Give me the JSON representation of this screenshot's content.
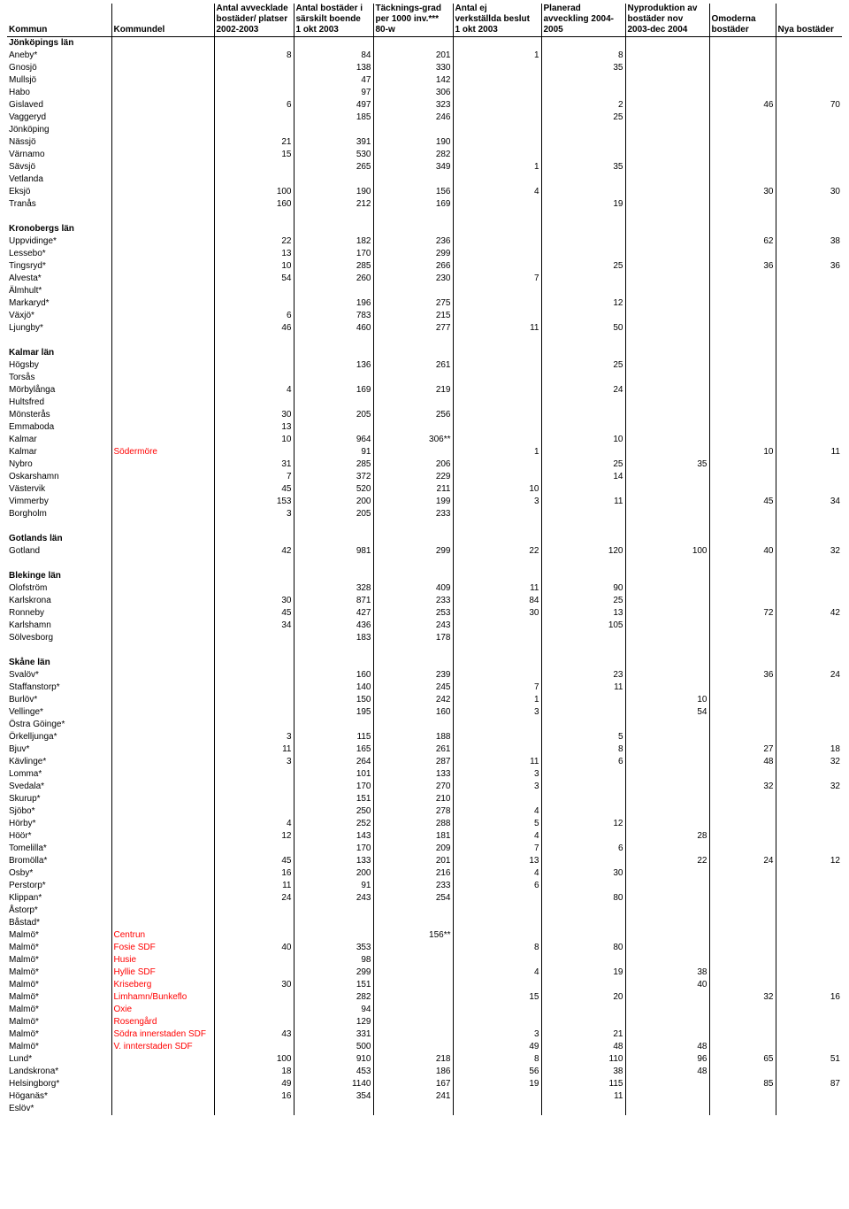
{
  "columns": {
    "kommun": "Kommun",
    "kommundel": "Kommundel",
    "avvecklade": "Antal avvecklade\nbostäder/ platser\n2002-2003",
    "sarskilt": "Antal bostäder i\nsärskilt boende\n1 okt 2003",
    "tacknings": "Täcknings-grad\nper 1000 inv.***\n80-w",
    "ejverk": "Antal ej\nverkställda beslut\n1 okt 2003",
    "planerad": "Planerad\navveckling 2004-\n2005",
    "nyprod": "Nyproduktion av\nbostäder nov\n2003-dec 2004",
    "omoderna": "Omoderna\nbostäder",
    "nya": "Nya bostäder"
  },
  "rows": [
    {
      "k": "Jönköpings län",
      "bold": true
    },
    {
      "k": "Aneby*",
      "av": "8",
      "sa": "84",
      "ta": "201",
      "ej": "1",
      "pl": "8"
    },
    {
      "k": "Gnosjö",
      "sa": "138",
      "ta": "330",
      "pl": "35"
    },
    {
      "k": "Mullsjö",
      "sa": "47",
      "ta": "142"
    },
    {
      "k": "Habo",
      "sa": "97",
      "ta": "306"
    },
    {
      "k": "Gislaved",
      "av": "6",
      "sa": "497",
      "ta": "323",
      "pl": "2",
      "om": "46",
      "ny": "70"
    },
    {
      "k": "Vaggeryd",
      "sa": "185",
      "ta": "246",
      "pl": "25"
    },
    {
      "k": "Jönköping"
    },
    {
      "k": "Nässjö",
      "av": "21",
      "sa": "391",
      "ta": "190"
    },
    {
      "k": "Värnamo",
      "av": "15",
      "sa": "530",
      "ta": "282"
    },
    {
      "k": "Sävsjö",
      "sa": "265",
      "ta": "349",
      "ej": "1",
      "pl": "35"
    },
    {
      "k": "Vetlanda"
    },
    {
      "k": "Eksjö",
      "av": "100",
      "sa": "190",
      "ta": "156",
      "ej": "4",
      "om": "30",
      "ny": "30"
    },
    {
      "k": "Tranås",
      "av": "160",
      "sa": "212",
      "ta": "169",
      "pl": "19"
    },
    {
      "blank": true
    },
    {
      "k": "Kronobergs län",
      "bold": true
    },
    {
      "k": "Uppvidinge*",
      "av": "22",
      "sa": "182",
      "ta": "236",
      "om": "62",
      "ny": "38"
    },
    {
      "k": "Lessebo*",
      "av": "13",
      "sa": "170",
      "ta": "299"
    },
    {
      "k": "Tingsryd*",
      "av": "10",
      "sa": "285",
      "ta": "266",
      "pl": "25",
      "om": "36",
      "ny": "36"
    },
    {
      "k": "Alvesta*",
      "av": "54",
      "sa": "260",
      "ta": "230",
      "ej": "7"
    },
    {
      "k": "Älmhult*"
    },
    {
      "k": "Markaryd*",
      "sa": "196",
      "ta": "275",
      "pl": "12"
    },
    {
      "k": "Växjö*",
      "av": "6",
      "sa": "783",
      "ta": "215"
    },
    {
      "k": "Ljungby*",
      "av": "46",
      "sa": "460",
      "ta": "277",
      "ej": "11",
      "pl": "50"
    },
    {
      "blank": true
    },
    {
      "k": "Kalmar län",
      "bold": true
    },
    {
      "k": "Högsby",
      "sa": "136",
      "ta": "261",
      "pl": "25"
    },
    {
      "k": "Torsås"
    },
    {
      "k": "Mörbylånga",
      "av": "4",
      "sa": "169",
      "ta": "219",
      "pl": "24"
    },
    {
      "k": "Hultsfred"
    },
    {
      "k": "Mönsterås",
      "av": "30",
      "sa": "205",
      "ta": "256"
    },
    {
      "k": "Emmaboda",
      "av": "13"
    },
    {
      "k": "Kalmar",
      "av": "10",
      "sa": "964",
      "ta": "306**",
      "pl": "10"
    },
    {
      "k": "Kalmar",
      "kd": "Södermöre",
      "red": true,
      "sa": "91",
      "ej": "1",
      "om": "10",
      "ny": "11"
    },
    {
      "k": "Nybro",
      "av": "31",
      "sa": "285",
      "ta": "206",
      "pl": "25",
      "np": "35"
    },
    {
      "k": "Oskarshamn",
      "av": "7",
      "sa": "372",
      "ta": "229",
      "pl": "14"
    },
    {
      "k": "Västervik",
      "av": "45",
      "sa": "520",
      "ta": "211",
      "ej": "10"
    },
    {
      "k": "Vimmerby",
      "av": "153",
      "sa": "200",
      "ta": "199",
      "ej": "3",
      "pl": "11",
      "om": "45",
      "ny": "34"
    },
    {
      "k": "Borgholm",
      "av": "3",
      "sa": "205",
      "ta": "233"
    },
    {
      "blank": true
    },
    {
      "k": "Gotlands län",
      "bold": true
    },
    {
      "k": "Gotland",
      "av": "42",
      "sa": "981",
      "ta": "299",
      "ej": "22",
      "pl": "120",
      "np": "100",
      "om": "40",
      "ny": "32"
    },
    {
      "blank": true
    },
    {
      "k": "Blekinge län",
      "bold": true
    },
    {
      "k": "Olofström",
      "sa": "328",
      "ta": "409",
      "ej": "11",
      "pl": "90"
    },
    {
      "k": "Karlskrona",
      "av": "30",
      "sa": "871",
      "ta": "233",
      "ej": "84",
      "pl": "25"
    },
    {
      "k": "Ronneby",
      "av": "45",
      "sa": "427",
      "ta": "253",
      "ej": "30",
      "pl": "13",
      "om": "72",
      "ny": "42"
    },
    {
      "k": "Karlshamn",
      "av": "34",
      "sa": "436",
      "ta": "243",
      "pl": "105"
    },
    {
      "k": "Sölvesborg",
      "sa": "183",
      "ta": "178"
    },
    {
      "blank": true
    },
    {
      "k": "Skåne län",
      "bold": true
    },
    {
      "k": "Svalöv*",
      "sa": "160",
      "ta": "239",
      "pl": "23",
      "om": "36",
      "ny": "24"
    },
    {
      "k": "Staffanstorp*",
      "sa": "140",
      "ta": "245",
      "ej": "7",
      "pl": "11"
    },
    {
      "k": "Burlöv*",
      "sa": "150",
      "ta": "242",
      "ej": "1",
      "np": "10"
    },
    {
      "k": "Vellinge*",
      "sa": "195",
      "ta": "160",
      "ej": "3",
      "np": "54"
    },
    {
      "k": "Östra Göinge*"
    },
    {
      "k": "Örkelljunga*",
      "av": "3",
      "sa": "115",
      "ta": "188",
      "pl": "5"
    },
    {
      "k": "Bjuv*",
      "av": "11",
      "sa": "165",
      "ta": "261",
      "pl": "8",
      "om": "27",
      "ny": "18"
    },
    {
      "k": "Kävlinge*",
      "av": "3",
      "sa": "264",
      "ta": "287",
      "ej": "11",
      "pl": "6",
      "om": "48",
      "ny": "32"
    },
    {
      "k": "Lomma*",
      "sa": "101",
      "ta": "133",
      "ej": "3"
    },
    {
      "k": "Svedala*",
      "sa": "170",
      "ta": "270",
      "ej": "3",
      "om": "32",
      "ny": "32"
    },
    {
      "k": "Skurup*",
      "sa": "151",
      "ta": "210"
    },
    {
      "k": "Sjöbo*",
      "sa": "250",
      "ta": "278",
      "ej": "4"
    },
    {
      "k": "Hörby*",
      "av": "4",
      "sa": "252",
      "ta": "288",
      "ej": "5",
      "pl": "12"
    },
    {
      "k": "Höör*",
      "av": "12",
      "sa": "143",
      "ta": "181",
      "ej": "4",
      "np": "28"
    },
    {
      "k": "Tomelilla*",
      "sa": "170",
      "ta": "209",
      "ej": "7",
      "pl": "6"
    },
    {
      "k": "Bromölla*",
      "av": "45",
      "sa": "133",
      "ta": "201",
      "ej": "13",
      "np": "22",
      "om": "24",
      "ny": "12"
    },
    {
      "k": "Osby*",
      "av": "16",
      "sa": "200",
      "ta": "216",
      "ej": "4",
      "pl": "30"
    },
    {
      "k": "Perstorp*",
      "av": "11",
      "sa": "91",
      "ta": "233",
      "ej": "6"
    },
    {
      "k": "Klippan*",
      "av": "24",
      "sa": "243",
      "ta": "254",
      "pl": "80"
    },
    {
      "k": "Åstorp*"
    },
    {
      "k": "Båstad*"
    },
    {
      "k": "Malmö*",
      "kd": "Centrun",
      "red": true,
      "ta": "156**"
    },
    {
      "k": "Malmö*",
      "kd": "Fosie SDF",
      "red": true,
      "av": "40",
      "sa": "353",
      "ej": "8",
      "pl": "80"
    },
    {
      "k": "Malmö*",
      "kd": "Husie",
      "red": true,
      "sa": "98"
    },
    {
      "k": "Malmö*",
      "kd": "Hyllie SDF",
      "red": true,
      "sa": "299",
      "ej": "4",
      "pl": "19",
      "np": "38"
    },
    {
      "k": "Malmö*",
      "kd": "Kriseberg",
      "red": true,
      "av": "30",
      "sa": "151",
      "np": "40"
    },
    {
      "k": "Malmö*",
      "kd": "Limhamn/Bunkeflo",
      "red": true,
      "sa": "282",
      "ej": "15",
      "pl": "20",
      "om": "32",
      "ny": "16"
    },
    {
      "k": "Malmö*",
      "kd": "Oxie",
      "red": true,
      "sa": "94"
    },
    {
      "k": "Malmö*",
      "kd": "Rosengård",
      "red": true,
      "sa": "129"
    },
    {
      "k": "Malmö*",
      "kd": "Södra innerstaden SDF",
      "red": true,
      "av": "43",
      "sa": "331",
      "ej": "3",
      "pl": "21"
    },
    {
      "k": "Malmö*",
      "kd": "V. innterstaden SDF",
      "red": true,
      "sa": "500",
      "ej": "49",
      "pl": "48",
      "np": "48"
    },
    {
      "k": "Lund*",
      "av": "100",
      "sa": "910",
      "ta": "218",
      "ej": "8",
      "pl": "110",
      "np": "96",
      "om": "65",
      "ny": "51"
    },
    {
      "k": "Landskrona*",
      "av": "18",
      "sa": "453",
      "ta": "186",
      "ej": "56",
      "pl": "38",
      "np": "48"
    },
    {
      "k": "Helsingborg*",
      "av": "49",
      "sa": "1140",
      "ta": "167",
      "ej": "19",
      "pl": "115",
      "om": "85",
      "ny": "87"
    },
    {
      "k": "Höganäs*",
      "av": "16",
      "sa": "354",
      "ta": "241",
      "pl": "11"
    },
    {
      "k": "Eslöv*"
    }
  ]
}
